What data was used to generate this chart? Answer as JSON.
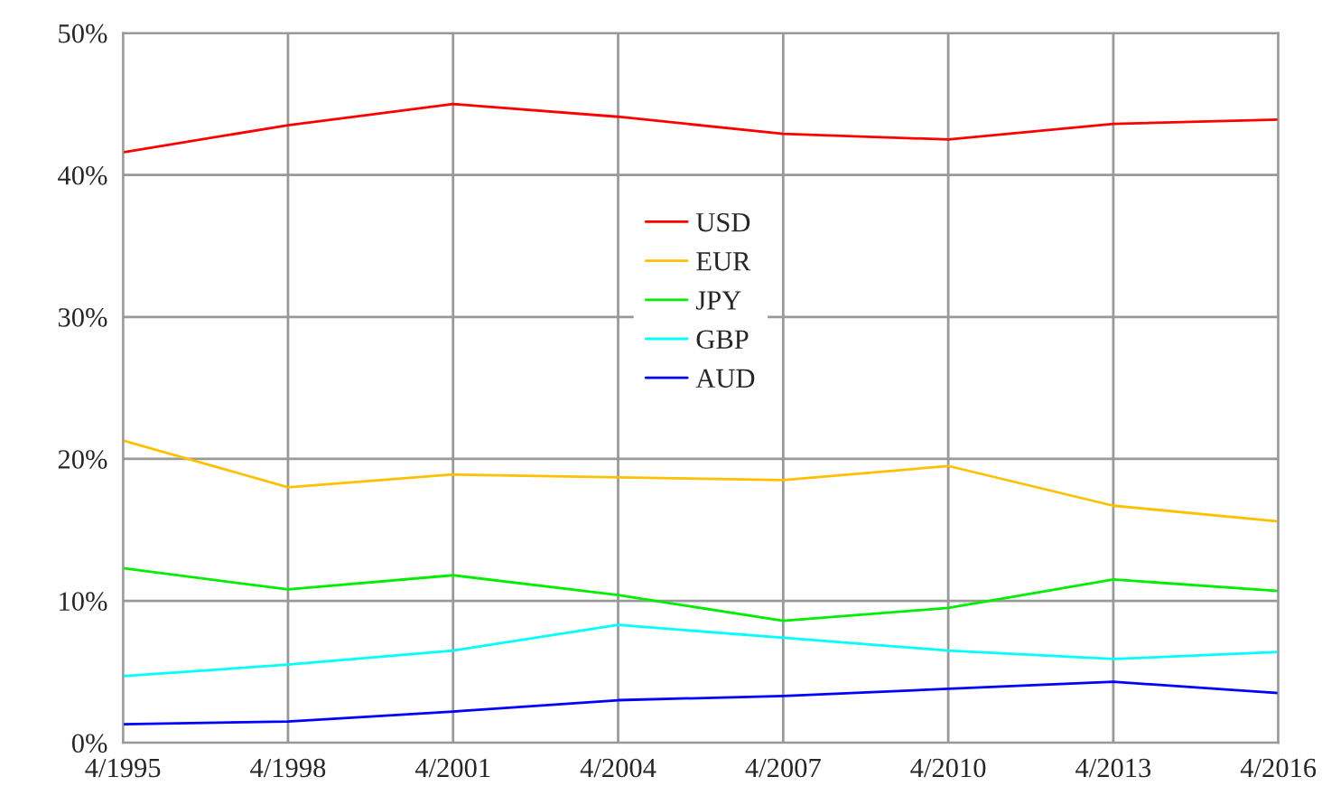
{
  "chart_data": {
    "type": "line",
    "categories": [
      "4/1995",
      "4/1998",
      "4/2001",
      "4/2004",
      "4/2007",
      "4/2010",
      "4/2013",
      "4/2016"
    ],
    "series": [
      {
        "name": "USD",
        "color": "#ff0000",
        "values": [
          41.6,
          43.5,
          45.0,
          44.1,
          42.9,
          42.5,
          43.6,
          43.9
        ]
      },
      {
        "name": "EUR",
        "color": "#ffc000",
        "values": [
          21.3,
          18.0,
          18.9,
          18.7,
          18.5,
          19.5,
          16.7,
          15.6
        ]
      },
      {
        "name": "JPY",
        "color": "#00ee00",
        "values": [
          12.3,
          10.8,
          11.8,
          10.4,
          8.6,
          9.5,
          11.5,
          10.7
        ]
      },
      {
        "name": "GBP",
        "color": "#00ffff",
        "values": [
          4.7,
          5.5,
          6.5,
          8.3,
          7.4,
          6.5,
          5.9,
          6.4
        ]
      },
      {
        "name": "AUD",
        "color": "#0000ff",
        "values": [
          1.3,
          1.5,
          2.2,
          3.0,
          3.3,
          3.8,
          4.3,
          3.5
        ]
      }
    ],
    "ylim": [
      0,
      50
    ],
    "yticks": [
      {
        "value": 0,
        "label": "0%"
      },
      {
        "value": 10,
        "label": "10%"
      },
      {
        "value": 20,
        "label": "20%"
      },
      {
        "value": 30,
        "label": "30%"
      },
      {
        "value": 40,
        "label": "40%"
      },
      {
        "value": 50,
        "label": "50%"
      }
    ],
    "grid": true,
    "legend": "center",
    "marker": "none",
    "line_style": "solid"
  }
}
